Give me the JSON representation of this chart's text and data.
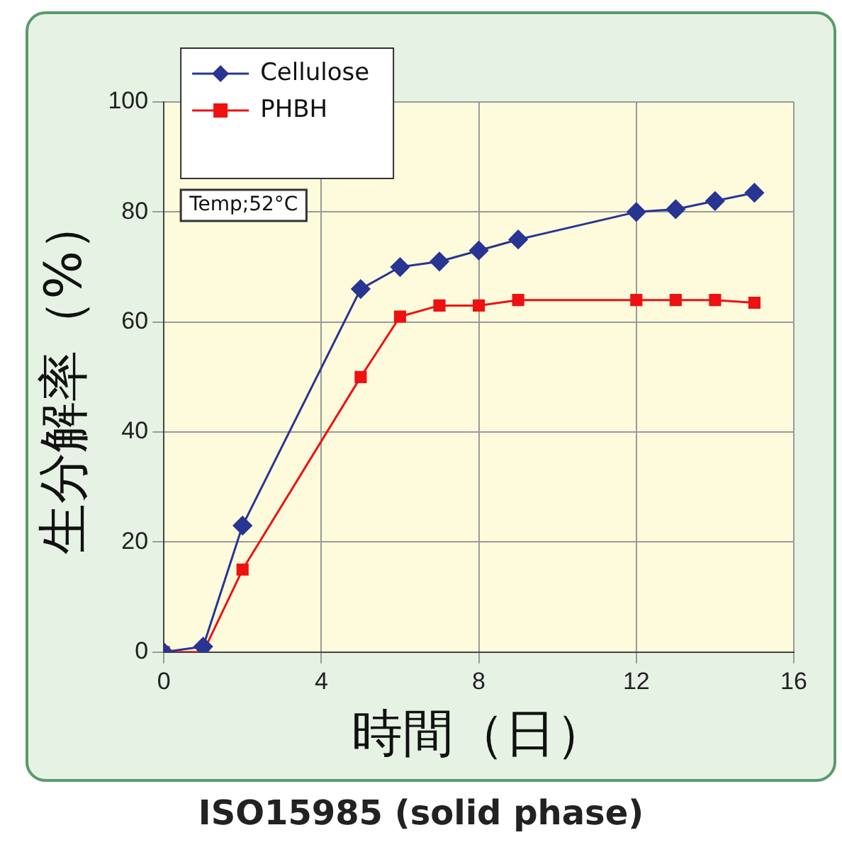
{
  "chart_data": {
    "type": "line",
    "xlabel": "時間（日）",
    "ylabel": "生分解率（%）",
    "xlim": [
      0,
      16
    ],
    "xticks": [
      0,
      4,
      8,
      12,
      16
    ],
    "ylim": [
      0,
      100
    ],
    "yticks": [
      0,
      20,
      40,
      60,
      80,
      100
    ],
    "grid": true,
    "legend": "top left",
    "x": [
      0,
      1,
      2,
      5,
      6,
      7,
      8,
      9,
      12,
      13,
      14,
      15
    ],
    "series": [
      {
        "name": "Cellulose",
        "color": "#283593",
        "marker": "diamond",
        "values": [
          0,
          1,
          23,
          66,
          70,
          71,
          73,
          75,
          80,
          80.5,
          82,
          83.5
        ]
      },
      {
        "name": "PHBH",
        "color": "#ee1111",
        "marker": "square",
        "values": [
          0,
          0,
          15,
          50,
          61,
          63,
          63,
          64,
          64,
          64,
          64,
          63.5
        ]
      }
    ],
    "annotations": [
      "Temp;52°C",
      "ISO15985 (solid phase)"
    ]
  }
}
